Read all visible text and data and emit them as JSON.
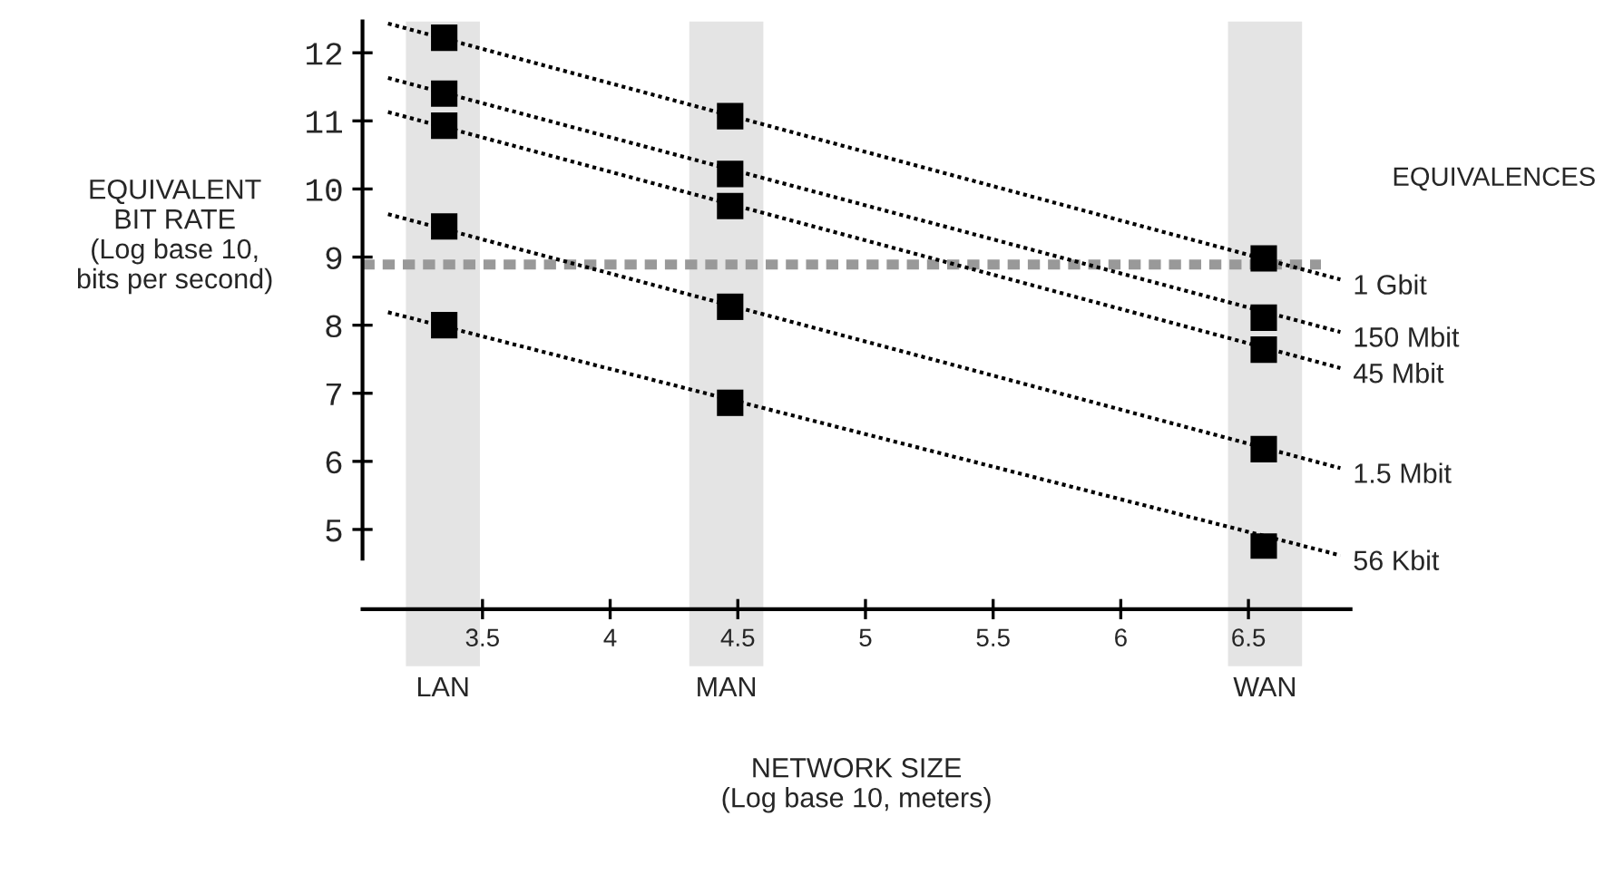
{
  "chart_data": {
    "type": "line",
    "xlabel": "NETWORK SIZE\n(Log base 10, meters)",
    "ylabel": "EQUIVALENT\nBIT RATE\n(Log base 10,\nbits per second)",
    "legend_title": "EQUIVALENCES",
    "xlim": [
      3.03,
      6.9
    ],
    "ylim": [
      4.57,
      12.46
    ],
    "xticks": [
      3.5,
      4,
      4.5,
      5,
      5.5,
      6,
      6.5
    ],
    "yticks": [
      5,
      6,
      7,
      8,
      9,
      10,
      11,
      12
    ],
    "grid": false,
    "legend": false,
    "bands": [
      {
        "axis": "x",
        "from": 3.2,
        "to": 3.49,
        "label": "LAN",
        "color": "#e4e4e4"
      },
      {
        "axis": "x",
        "from": 4.31,
        "to": 4.6,
        "label": "MAN",
        "color": "#e4e4e4"
      },
      {
        "axis": "x",
        "from": 6.42,
        "to": 6.71,
        "label": "WAN",
        "color": "#e4e4e4"
      }
    ],
    "ref_lines": [
      {
        "axis": "y",
        "value": 8.89,
        "color": "#999999",
        "line_style": "dashed"
      }
    ],
    "series": [
      {
        "name": "1 Gbit",
        "color": "#000000",
        "line_style": "dotted",
        "marker": "none",
        "x": [
          3.13,
          6.86
        ],
        "values": [
          12.43,
          8.67
        ]
      },
      {
        "name": "150 Mbit",
        "color": "#000000",
        "line_style": "dotted",
        "marker": "none",
        "x": [
          3.13,
          6.86
        ],
        "values": [
          11.63,
          7.9
        ]
      },
      {
        "name": "45 Mbit",
        "color": "#000000",
        "line_style": "dotted",
        "marker": "none",
        "x": [
          3.13,
          6.86
        ],
        "values": [
          11.13,
          7.37
        ]
      },
      {
        "name": "1.5 Mbit",
        "color": "#000000",
        "line_style": "dotted",
        "marker": "none",
        "x": [
          3.13,
          6.86
        ],
        "values": [
          9.63,
          5.9
        ]
      },
      {
        "name": "56 Kbit",
        "color": "#000000",
        "line_style": "dotted",
        "marker": "none",
        "x": [
          3.13,
          6.86
        ],
        "values": [
          8.19,
          4.62
        ]
      },
      {
        "type": "scatter",
        "color": "#000000",
        "marker": "square",
        "x": [
          3.35,
          4.47,
          6.56
        ],
        "values": [
          12.22,
          11.07,
          8.98
        ]
      },
      {
        "type": "scatter",
        "color": "#000000",
        "marker": "square",
        "x": [
          3.35,
          4.47,
          6.56
        ],
        "values": [
          11.4,
          10.22,
          8.11
        ]
      },
      {
        "type": "scatter",
        "color": "#000000",
        "marker": "square",
        "x": [
          3.35,
          4.47,
          6.56
        ],
        "values": [
          10.93,
          9.75,
          7.64
        ]
      },
      {
        "type": "scatter",
        "color": "#000000",
        "marker": "square",
        "x": [
          3.35,
          4.47,
          6.56
        ],
        "values": [
          9.45,
          8.27,
          6.18
        ]
      },
      {
        "type": "scatter",
        "color": "#000000",
        "marker": "square",
        "x": [
          3.35,
          4.47,
          6.56
        ],
        "values": [
          8.0,
          6.86,
          4.75
        ]
      }
    ]
  }
}
